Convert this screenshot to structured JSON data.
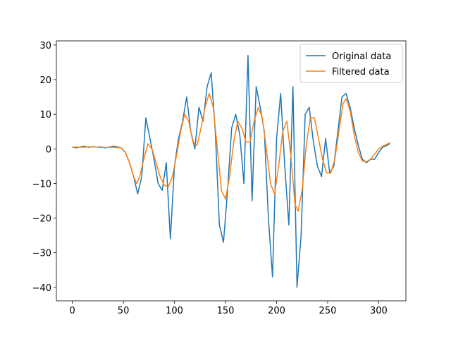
{
  "chart_data": {
    "type": "line",
    "xlim": [
      -15.6,
      326.6
    ],
    "ylim": [
      -43.9,
      31.2
    ],
    "xticks": [
      0,
      50,
      100,
      150,
      200,
      250,
      300
    ],
    "yticks": [
      {
        "value": -40,
        "label": "−40"
      },
      {
        "value": -30,
        "label": "−30"
      },
      {
        "value": -20,
        "label": "−20"
      },
      {
        "value": -10,
        "label": "−10"
      },
      0,
      10,
      20,
      30
    ],
    "legend": "upper right",
    "series": [
      {
        "name": "Original data",
        "color": "#1f77b4",
        "x": [
          0,
          4,
          8,
          12,
          16,
          20,
          24,
          28,
          32,
          36,
          40,
          44,
          48,
          52,
          56,
          60,
          64,
          68,
          72,
          76,
          80,
          84,
          88,
          92,
          96,
          100,
          104,
          108,
          112,
          116,
          120,
          124,
          128,
          132,
          136,
          140,
          144,
          148,
          152,
          156,
          160,
          164,
          168,
          172,
          176,
          180,
          184,
          188,
          192,
          196,
          200,
          204,
          208,
          212,
          216,
          220,
          224,
          228,
          232,
          236,
          240,
          244,
          248,
          252,
          256,
          260,
          264,
          268,
          272,
          276,
          280,
          284,
          288,
          292,
          296,
          300,
          304,
          308,
          311
        ],
        "values": [
          0.5,
          0.3,
          0.6,
          0.8,
          0.4,
          0.7,
          0.5,
          0.6,
          0.3,
          0.5,
          0.8,
          0.6,
          0.2,
          -1,
          -4,
          -8,
          -13,
          -8,
          9,
          3,
          -3,
          -10,
          -12,
          -4,
          -26,
          -5,
          3,
          8,
          15,
          5,
          0,
          12,
          8,
          18,
          22,
          5,
          -22,
          -27,
          -12,
          6,
          10,
          4,
          -10,
          27,
          -15,
          18,
          12,
          5,
          -20,
          -37,
          3,
          16,
          -5,
          -22,
          18,
          -40,
          -25,
          10,
          12,
          2,
          -5,
          -8,
          3,
          -7,
          -5,
          5,
          15,
          16,
          12,
          6,
          1,
          -3,
          -4,
          -3,
          -3,
          -1,
          0.5,
          1,
          1.5
        ]
      },
      {
        "name": "Filtered data",
        "color": "#ff7f0e",
        "x": [
          0,
          10,
          20,
          30,
          40,
          48,
          52,
          56,
          60,
          63,
          66,
          70,
          74,
          78,
          82,
          86,
          90,
          94,
          98,
          102,
          106,
          110,
          114,
          118,
          122,
          126,
          130,
          134,
          138,
          142,
          146,
          150,
          154,
          158,
          162,
          166,
          170,
          174,
          178,
          182,
          186,
          190,
          194,
          198,
          202,
          206,
          210,
          214,
          218,
          221,
          225,
          229,
          233,
          237,
          241,
          245,
          249,
          253,
          257,
          261,
          265,
          268,
          272,
          276,
          280,
          284,
          288,
          292,
          296,
          300,
          304,
          308,
          311
        ],
        "values": [
          0.5,
          0.5,
          0.6,
          0.4,
          0.5,
          0.3,
          -1,
          -4,
          -8,
          -10,
          -8,
          -3,
          1.5,
          0,
          -4,
          -8,
          -10.5,
          -11,
          -8,
          -2,
          5,
          10,
          8,
          2,
          1,
          6,
          12,
          16,
          12,
          0,
          -12,
          -14.5,
          -8,
          2,
          8,
          6,
          2,
          2,
          8,
          12,
          9,
          0,
          -10,
          -13,
          -5,
          5,
          8,
          -2,
          -16,
          -18,
          -12,
          1,
          9,
          9,
          3,
          -3,
          -7,
          -7,
          -3,
          5,
          13,
          14.5,
          11,
          4,
          -1,
          -3.5,
          -3.7,
          -3,
          -1.5,
          0,
          0.8,
          1.3,
          1.8
        ]
      }
    ]
  }
}
